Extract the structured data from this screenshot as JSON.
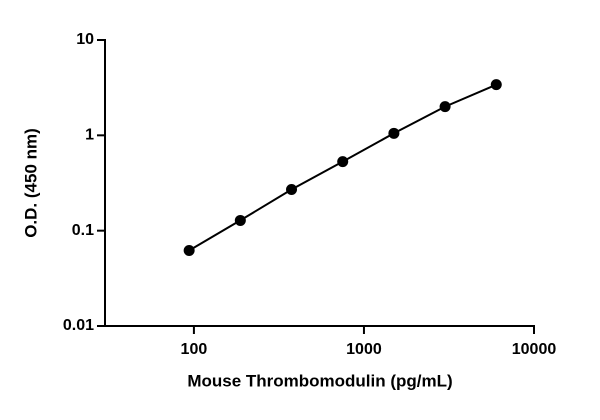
{
  "chart_data": {
    "type": "line",
    "x_label": "Mouse Thrombomodulin (pg/mL)",
    "y_label": "O.D. (450 nm)",
    "x": [
      93.75,
      187.5,
      375,
      750,
      1500,
      3000,
      6000
    ],
    "series": [
      {
        "values": [
          0.062,
          0.128,
          0.27,
          0.53,
          1.05,
          2.0,
          3.4
        ],
        "color": "#000000"
      }
    ],
    "xscale": "log",
    "yscale": "log",
    "xlim": [
      30,
      10000
    ],
    "ylim": [
      0.01,
      10
    ],
    "xticks": [
      100,
      1000,
      10000
    ],
    "yticks": [
      0.01,
      0.1,
      1,
      10
    ],
    "markers": true
  }
}
